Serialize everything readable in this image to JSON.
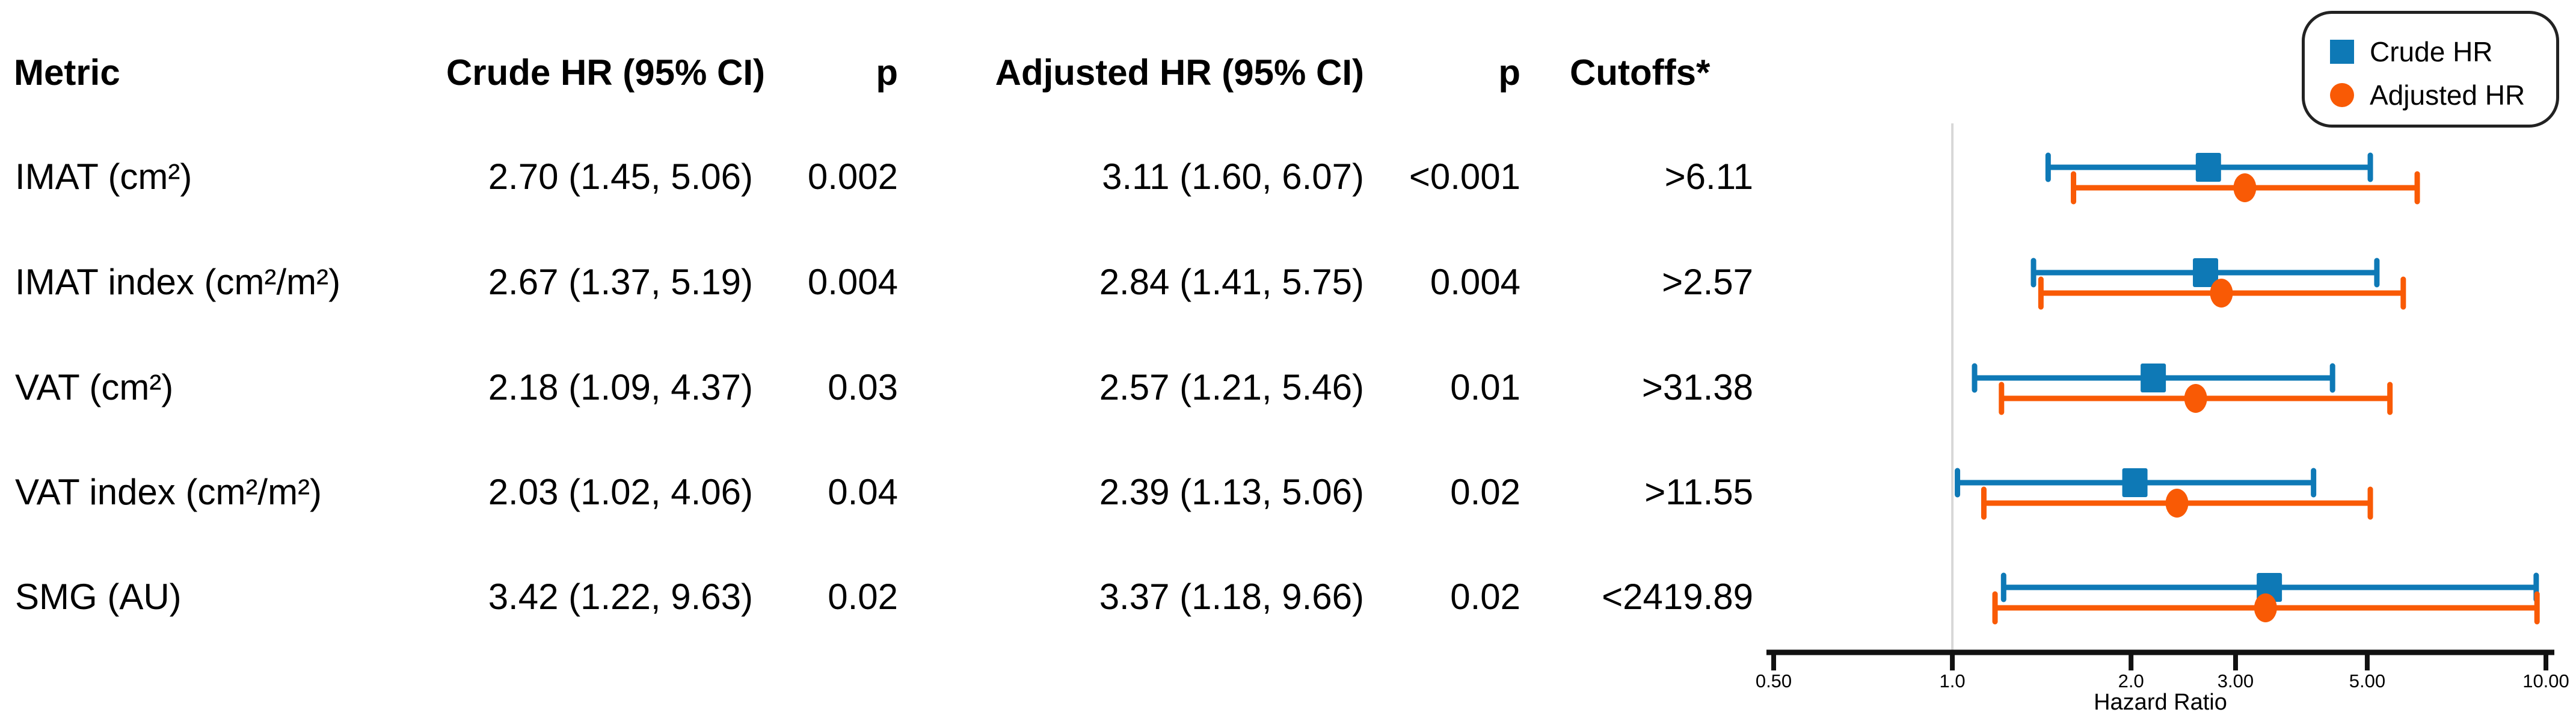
{
  "table": {
    "headers": {
      "metric": "Metric",
      "crude": "Crude HR (95% CI)",
      "p1": "p",
      "adjusted": "Adjusted HR (95% CI)",
      "p2": "p",
      "cutoffs": "Cutoffs*"
    }
  },
  "legend": {
    "crude_label": "Crude HR",
    "adjusted_label": "Adjusted HR"
  },
  "colors": {
    "crude_blue": "#0e79b6",
    "adjusted_orange": "#f95a05",
    "reference_line_gray": "#d8d8d8",
    "axis_black": "#111111"
  },
  "chart_data": {
    "type": "scatter",
    "subtype": "forest-plot",
    "xscale": "log",
    "xlim": [
      0.5,
      10
    ],
    "xlabel": "Hazard Ratio",
    "reference_line": 1.0,
    "grid": false,
    "legend_position": "top-right",
    "x_ticks": [
      {
        "value": 0.5,
        "label": "0.50"
      },
      {
        "value": 1.0,
        "label": "1.0"
      },
      {
        "value": 2.0,
        "label": "2.0"
      },
      {
        "value": 3.0,
        "label": "3.00"
      },
      {
        "value": 5.0,
        "label": "5.00"
      },
      {
        "value": 10.0,
        "label": "10.00"
      }
    ],
    "series": [
      {
        "name": "Crude HR",
        "marker": "square",
        "color_key": "crude_blue"
      },
      {
        "name": "Adjusted HR",
        "marker": "circle",
        "color_key": "adjusted_orange"
      }
    ],
    "rows": [
      {
        "metric": "IMAT (cm²)",
        "crude": {
          "hr": 2.7,
          "lo": 1.45,
          "hi": 5.06,
          "text": "2.70 (1.45, 5.06)",
          "p": "0.002"
        },
        "adjusted": {
          "hr": 3.11,
          "lo": 1.6,
          "hi": 6.07,
          "text": "3.11 (1.60, 6.07)",
          "p": "<0.001"
        },
        "cutoff": ">6.11"
      },
      {
        "metric": "IMAT index (cm²/m²)",
        "crude": {
          "hr": 2.67,
          "lo": 1.37,
          "hi": 5.19,
          "text": "2.67 (1.37, 5.19)",
          "p": "0.004"
        },
        "adjusted": {
          "hr": 2.84,
          "lo": 1.41,
          "hi": 5.75,
          "text": "2.84 (1.41, 5.75)",
          "p": "0.004"
        },
        "cutoff": ">2.57"
      },
      {
        "metric": "VAT (cm²)",
        "crude": {
          "hr": 2.18,
          "lo": 1.09,
          "hi": 4.37,
          "text": "2.18 (1.09, 4.37)",
          "p": "0.03"
        },
        "adjusted": {
          "hr": 2.57,
          "lo": 1.21,
          "hi": 5.46,
          "text": "2.57 (1.21, 5.46)",
          "p": "0.01"
        },
        "cutoff": ">31.38"
      },
      {
        "metric": "VAT index (cm²/m²)",
        "crude": {
          "hr": 2.03,
          "lo": 1.02,
          "hi": 4.06,
          "text": "2.03 (1.02, 4.06)",
          "p": "0.04"
        },
        "adjusted": {
          "hr": 2.39,
          "lo": 1.13,
          "hi": 5.06,
          "text": "2.39 (1.13, 5.06)",
          "p": "0.02"
        },
        "cutoff": ">11.55"
      },
      {
        "metric": "SMG (AU)",
        "crude": {
          "hr": 3.42,
          "lo": 1.22,
          "hi": 9.63,
          "text": "3.42 (1.22, 9.63)",
          "p": "0.02"
        },
        "adjusted": {
          "hr": 3.37,
          "lo": 1.18,
          "hi": 9.66,
          "text": "3.37 (1.18, 9.66)",
          "p": "0.02"
        },
        "cutoff": "<2419.89"
      }
    ]
  }
}
